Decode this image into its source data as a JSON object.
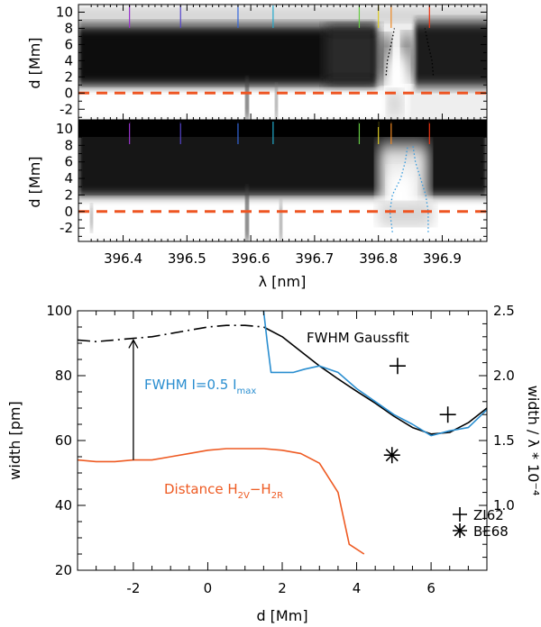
{
  "chart_data": [
    {
      "type": "heatmap",
      "panel": "top",
      "ylabel": "d [Mm]",
      "ylim": [
        -3,
        10.5
      ],
      "yticks": [
        "-2",
        "0",
        "2",
        "4",
        "6",
        "8",
        "10"
      ],
      "xlim": [
        396.33,
        396.97
      ],
      "reference_line": {
        "y": 0,
        "style": "dashed",
        "color": "#ee5522"
      },
      "marker_lines": [
        {
          "x": 396.41,
          "color": "#9933cc"
        },
        {
          "x": 396.49,
          "color": "#5544cc"
        },
        {
          "x": 396.58,
          "color": "#3366dd"
        },
        {
          "x": 396.635,
          "color": "#22aacc"
        },
        {
          "x": 396.77,
          "color": "#66cc44"
        },
        {
          "x": 396.8,
          "color": "#ddcc22"
        },
        {
          "x": 396.82,
          "color": "#ee8822"
        },
        {
          "x": 396.88,
          "color": "#ee3311"
        }
      ],
      "contours": [
        {
          "style": "dotted",
          "color": "#000000",
          "points": [
            [
              396.812,
              2.2
            ],
            [
              396.814,
              4.0
            ],
            [
              396.82,
              6.0
            ],
            [
              396.825,
              8.0
            ]
          ]
        },
        {
          "style": "dotted",
          "color": "#000000",
          "points": [
            [
              396.886,
              2.2
            ],
            [
              396.884,
              4.0
            ],
            [
              396.878,
              6.0
            ],
            [
              396.873,
              8.0
            ]
          ]
        }
      ]
    },
    {
      "type": "heatmap",
      "panel": "middle",
      "ylabel": "d [Mm]",
      "xlabel": "λ [nm]",
      "ylim": [
        -3,
        10.5
      ],
      "yticks": [
        "-2",
        "0",
        "2",
        "4",
        "6",
        "8",
        "10"
      ],
      "xlim": [
        396.33,
        396.97
      ],
      "xticks": [
        "396.4",
        "396.5",
        "396.6",
        "396.7",
        "396.8",
        "396.9"
      ],
      "reference_line": {
        "y": 0,
        "style": "dashed",
        "color": "#ee5522"
      },
      "marker_lines": [
        {
          "x": 396.41,
          "color": "#9933cc"
        },
        {
          "x": 396.49,
          "color": "#5544cc"
        },
        {
          "x": 396.58,
          "color": "#3366dd"
        },
        {
          "x": 396.635,
          "color": "#22aacc"
        },
        {
          "x": 396.77,
          "color": "#66cc44"
        },
        {
          "x": 396.8,
          "color": "#ddcc22"
        },
        {
          "x": 396.82,
          "color": "#ee8822"
        },
        {
          "x": 396.88,
          "color": "#ee3311"
        }
      ],
      "contours": [
        {
          "style": "dotted",
          "color": "#3399dd",
          "points": [
            [
              396.822,
              -2.5
            ],
            [
              396.818,
              0
            ],
            [
              396.822,
              2
            ],
            [
              396.835,
              4
            ],
            [
              396.842,
              6
            ],
            [
              396.846,
              8
            ]
          ]
        },
        {
          "style": "dotted",
          "color": "#3399dd",
          "points": [
            [
              396.878,
              -2.5
            ],
            [
              396.878,
              0
            ],
            [
              396.874,
              2
            ],
            [
              396.866,
              4
            ],
            [
              396.858,
              6
            ],
            [
              396.854,
              8
            ]
          ]
        }
      ]
    },
    {
      "type": "line",
      "panel": "bottom",
      "xlabel": "d [Mm]",
      "ylabel": "width [pm]",
      "y2label": "width / λ * 10⁻⁴",
      "xlim": [
        -3.5,
        7.5
      ],
      "ylim": [
        20,
        100
      ],
      "y2lim": [
        0.5,
        2.5
      ],
      "xticks": [
        "-2",
        "0",
        "2",
        "4",
        "6"
      ],
      "yticks": [
        "20",
        "40",
        "60",
        "80",
        "100"
      ],
      "y2ticks": [
        "1.0",
        "1.5",
        "2.0",
        "2.5"
      ],
      "series": [
        {
          "name": "FWHM Gaussfit",
          "color": "#000000",
          "style": "dash-dot",
          "x": [
            -3.5,
            -3,
            -2.5,
            -2,
            -1.5,
            -1,
            -0.5,
            0,
            0.5,
            1,
            1.5
          ],
          "y": [
            91,
            90.5,
            91,
            91.5,
            92,
            93,
            94,
            95,
            95.5,
            95.5,
            95
          ]
        },
        {
          "name": "FWHM Gaussfit (solid)",
          "color": "#000000",
          "style": "solid",
          "x": [
            1.5,
            2,
            2.5,
            3,
            3.5,
            4,
            4.5,
            5,
            5.5,
            6,
            6.5,
            7,
            7.5
          ],
          "y": [
            95,
            92,
            87.5,
            83,
            79,
            75.2,
            71.5,
            67.5,
            64,
            62,
            62.5,
            65.5,
            70
          ]
        },
        {
          "name": "FWHM I=0.5 Imax",
          "color": "#2a8ed0",
          "style": "solid",
          "x": [
            1.5,
            1.6,
            1.7,
            2.3,
            2.6,
            3.0,
            3.5,
            4.0,
            4.5,
            5.0,
            5.5,
            6.0,
            6.5,
            7.0,
            7.5
          ],
          "y": [
            100,
            90,
            81,
            81,
            82,
            83,
            81,
            76,
            72,
            68,
            65,
            61.5,
            63,
            64,
            69.5
          ]
        },
        {
          "name": "Distance H2V-H2R",
          "color": "#ee5a22",
          "style": "solid",
          "x": [
            -3.5,
            -3,
            -2.5,
            -2,
            -1.5,
            -1,
            -0.5,
            0,
            0.5,
            1,
            1.5,
            2,
            2.5,
            3,
            3.5,
            3.8,
            4.2
          ],
          "y": [
            54,
            53.5,
            53.5,
            54,
            54,
            55,
            56,
            57,
            57.5,
            57.5,
            57.5,
            57,
            56,
            53,
            44,
            28,
            25
          ]
        }
      ],
      "points": [
        {
          "name": "ZI62",
          "marker": "plus",
          "x": [
            5.1,
            6.45
          ],
          "y": [
            83,
            68
          ]
        },
        {
          "name": "BE68",
          "marker": "asterisk",
          "x": [
            4.95
          ],
          "y": [
            55.5
          ]
        }
      ],
      "arrow": {
        "x": -2,
        "from_y": 54,
        "to_y": 91
      },
      "annotations": {
        "gaussfit": "FWHM  Gaussfit",
        "fwhm_main": "FWHM  I=0.5  I",
        "fwhm_sub": "max",
        "distance_main": "Distance  H",
        "distance_sub1": "2V",
        "distance_dash": "−H",
        "distance_sub2": "2R"
      },
      "legend": {
        "location": "bottom-right",
        "entries": [
          {
            "label": "ZI62",
            "marker": "plus"
          },
          {
            "label": "BE68",
            "marker": "asterisk"
          }
        ]
      }
    }
  ]
}
